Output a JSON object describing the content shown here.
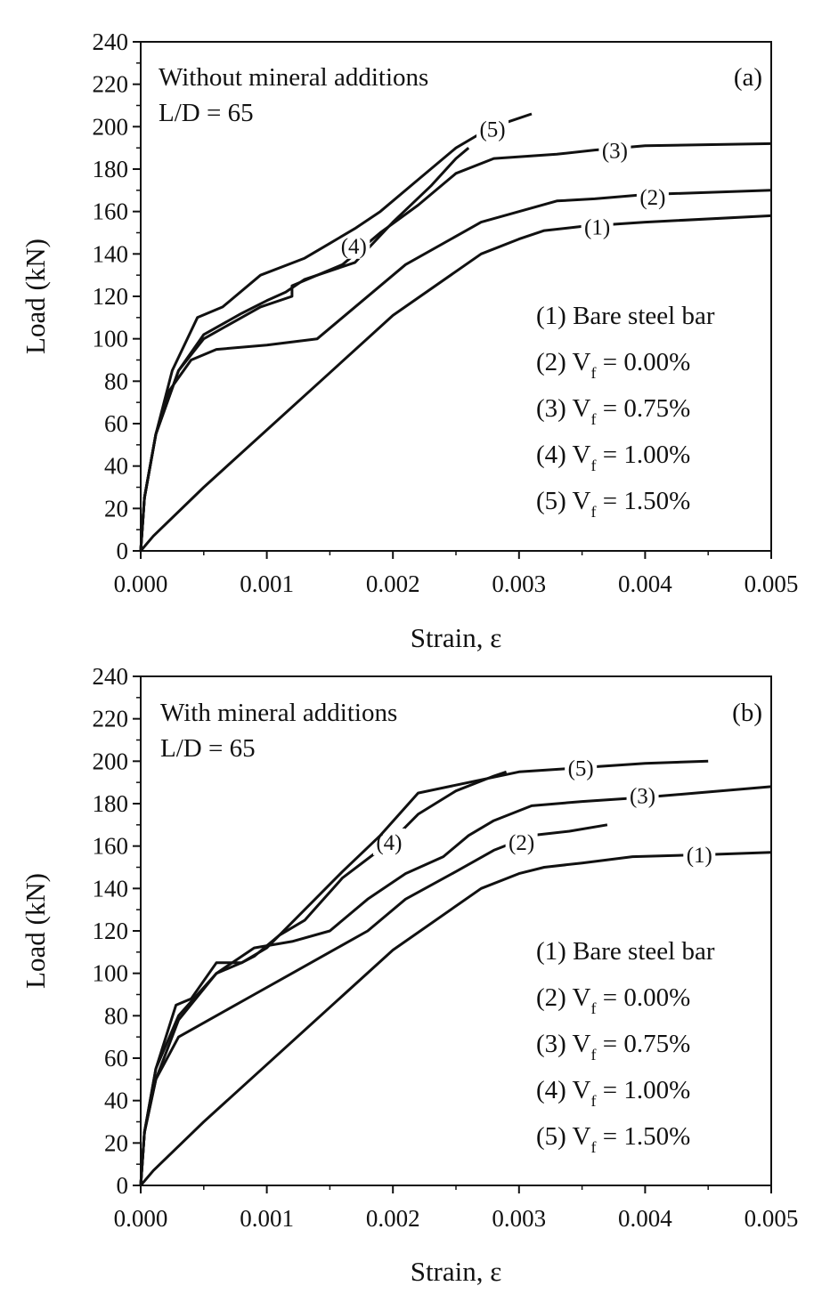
{
  "chart_data": [
    {
      "id": "a",
      "type": "line",
      "panel_label": "(a)",
      "annotation_lines": [
        "Without mineral additions",
        "L/D = 65"
      ],
      "xlabel": "Strain, ε",
      "ylabel": "Load (kN)",
      "xlim": [
        0,
        0.005
      ],
      "ylim": [
        0,
        240
      ],
      "x_ticks": [
        "0.000",
        "0.001",
        "0.002",
        "0.003",
        "0.004",
        "0.005"
      ],
      "y_ticks": [
        "0",
        "20",
        "40",
        "60",
        "80",
        "100",
        "120",
        "140",
        "160",
        "180",
        "200",
        "220",
        "240"
      ],
      "legend": {
        "position": "right-middle",
        "entries": [
          {
            "prefix": "(1) Bare steel bar",
            "sub": "",
            "suffix": ""
          },
          {
            "prefix": "(2) V",
            "sub": "f",
            "suffix": " = 0.00%"
          },
          {
            "prefix": "(3) V",
            "sub": "f",
            "suffix": " = 0.75%"
          },
          {
            "prefix": "(4) V",
            "sub": "f",
            "suffix": " = 1.00%"
          },
          {
            "prefix": "(5) V",
            "sub": "f",
            "suffix": " = 1.50%"
          }
        ]
      },
      "series": [
        {
          "name": "(1)",
          "tag": "(1)",
          "tag_at": [
            0.00362,
            153
          ],
          "points": [
            [
              0,
              0
            ],
            [
              0.0001,
              7
            ],
            [
              0.0005,
              30
            ],
            [
              0.001,
              57
            ],
            [
              0.0015,
              84
            ],
            [
              0.002,
              111
            ],
            [
              0.0027,
              140
            ],
            [
              0.003,
              147
            ],
            [
              0.0032,
              151
            ],
            [
              0.0035,
              153
            ],
            [
              0.004,
              155
            ],
            [
              0.005,
              158
            ]
          ]
        },
        {
          "name": "(2)",
          "tag": "(2)",
          "tag_at": [
            0.00406,
            167
          ],
          "points": [
            [
              0,
              0
            ],
            [
              3e-05,
              25
            ],
            [
              0.00012,
              55
            ],
            [
              0.00022,
              75
            ],
            [
              0.0004,
              90
            ],
            [
              0.0006,
              95
            ],
            [
              0.001,
              97
            ],
            [
              0.0014,
              100
            ],
            [
              0.0016,
              110
            ],
            [
              0.0021,
              135
            ],
            [
              0.0027,
              155
            ],
            [
              0.003,
              160
            ],
            [
              0.0033,
              165
            ],
            [
              0.0036,
              166
            ],
            [
              0.004,
              168
            ],
            [
              0.005,
              170
            ]
          ]
        },
        {
          "name": "(3)",
          "tag": "(3)",
          "tag_at": [
            0.00376,
            189
          ],
          "points": [
            [
              0,
              0
            ],
            [
              3e-05,
              25
            ],
            [
              0.00012,
              55
            ],
            [
              0.0003,
              85
            ],
            [
              0.0005,
              100
            ],
            [
              0.0008,
              110
            ],
            [
              0.00095,
              115
            ],
            [
              0.0012,
              120
            ],
            [
              0.0012,
              125
            ],
            [
              0.0016,
              135
            ],
            [
              0.0019,
              150
            ],
            [
              0.0022,
              163
            ],
            [
              0.0025,
              178
            ],
            [
              0.0028,
              185
            ],
            [
              0.0033,
              187
            ],
            [
              0.0036,
              189
            ],
            [
              0.004,
              191
            ],
            [
              0.005,
              192
            ]
          ]
        },
        {
          "name": "(4)",
          "tag": "(4)",
          "tag_at": [
            0.00169,
            144
          ],
          "points": [
            [
              0,
              0
            ],
            [
              3e-05,
              25
            ],
            [
              0.00012,
              55
            ],
            [
              0.0003,
              85
            ],
            [
              0.0005,
              102
            ],
            [
              0.0008,
              112
            ],
            [
              0.001,
              118
            ],
            [
              0.00115,
              122
            ],
            [
              0.0013,
              128
            ],
            [
              0.0015,
              132
            ],
            [
              0.0017,
              136
            ],
            [
              0.002,
              155
            ],
            [
              0.0023,
              172
            ],
            [
              0.0025,
              185
            ],
            [
              0.0026,
              190
            ]
          ]
        },
        {
          "name": "(5)",
          "tag": "(5)",
          "tag_at": [
            0.00279,
            199
          ],
          "points": [
            [
              0,
              0
            ],
            [
              3e-05,
              25
            ],
            [
              0.00012,
              55
            ],
            [
              0.00025,
              85
            ],
            [
              0.00045,
              110
            ],
            [
              0.00065,
              115
            ],
            [
              0.00095,
              130
            ],
            [
              0.0013,
              138
            ],
            [
              0.0015,
              145
            ],
            [
              0.0017,
              152
            ],
            [
              0.0019,
              160
            ],
            [
              0.0022,
              175
            ],
            [
              0.0025,
              190
            ],
            [
              0.0027,
              197
            ],
            [
              0.0028,
              200
            ],
            [
              0.0029,
              202
            ],
            [
              0.0031,
              206
            ]
          ]
        }
      ]
    },
    {
      "id": "b",
      "type": "line",
      "panel_label": "(b)",
      "annotation_lines": [
        "With mineral additions",
        "L/D = 65"
      ],
      "xlabel": "Strain, ε",
      "ylabel": "Load (kN)",
      "xlim": [
        0,
        0.005
      ],
      "ylim": [
        0,
        240
      ],
      "x_ticks": [
        "0.000",
        "0.001",
        "0.002",
        "0.003",
        "0.004",
        "0.005"
      ],
      "y_ticks": [
        "0",
        "20",
        "40",
        "60",
        "80",
        "100",
        "120",
        "140",
        "160",
        "180",
        "200",
        "220",
        "240"
      ],
      "legend": {
        "position": "right-bottom",
        "entries": [
          {
            "prefix": "(1) Bare steel bar",
            "sub": "",
            "suffix": ""
          },
          {
            "prefix": "(2) V",
            "sub": "f",
            "suffix": " = 0.00%"
          },
          {
            "prefix": "(3) V",
            "sub": "f",
            "suffix": " = 0.75%"
          },
          {
            "prefix": "(4) V",
            "sub": "f",
            "suffix": " = 1.00%"
          },
          {
            "prefix": "(5) V",
            "sub": "f",
            "suffix": " = 1.50%"
          }
        ]
      },
      "series": [
        {
          "name": "(1)",
          "tag": "(1)",
          "tag_at": [
            0.00443,
            156
          ],
          "points": [
            [
              0,
              0
            ],
            [
              0.0001,
              7
            ],
            [
              0.0005,
              30
            ],
            [
              0.001,
              57
            ],
            [
              0.0015,
              84
            ],
            [
              0.002,
              111
            ],
            [
              0.0027,
              140
            ],
            [
              0.003,
              147
            ],
            [
              0.0032,
              150
            ],
            [
              0.0035,
              152
            ],
            [
              0.0039,
              155
            ],
            [
              0.0045,
              156
            ],
            [
              0.005,
              157
            ]
          ]
        },
        {
          "name": "(2)",
          "tag": "(2)",
          "tag_at": [
            0.00302,
            162
          ],
          "points": [
            [
              0,
              0
            ],
            [
              3e-05,
              25
            ],
            [
              0.00012,
              50
            ],
            [
              0.0003,
              70
            ],
            [
              0.0006,
              80
            ],
            [
              0.0009,
              90
            ],
            [
              0.0012,
              100
            ],
            [
              0.0015,
              110
            ],
            [
              0.0018,
              120
            ],
            [
              0.0021,
              135
            ],
            [
              0.0025,
              148
            ],
            [
              0.0028,
              158
            ],
            [
              0.0031,
              165
            ],
            [
              0.0034,
              167
            ],
            [
              0.0037,
              170
            ]
          ]
        },
        {
          "name": "(3)",
          "tag": "(3)",
          "tag_at": [
            0.00398,
            184
          ],
          "points": [
            [
              0,
              0
            ],
            [
              3e-05,
              25
            ],
            [
              0.00012,
              50
            ],
            [
              0.0003,
              78
            ],
            [
              0.0006,
              100
            ],
            [
              0.0009,
              112
            ],
            [
              0.0012,
              115
            ],
            [
              0.0015,
              120
            ],
            [
              0.0018,
              135
            ],
            [
              0.0021,
              147
            ],
            [
              0.0024,
              155
            ],
            [
              0.0026,
              165
            ],
            [
              0.0028,
              172
            ],
            [
              0.0031,
              179
            ],
            [
              0.0035,
              181
            ],
            [
              0.004,
              183
            ],
            [
              0.005,
              188
            ]
          ]
        },
        {
          "name": "(4)",
          "tag": "(4)",
          "tag_at": [
            0.00197,
            162
          ],
          "points": [
            [
              0,
              0
            ],
            [
              3e-05,
              25
            ],
            [
              0.00012,
              55
            ],
            [
              0.0003,
              80
            ],
            [
              0.0006,
              100
            ],
            [
              0.0008,
              105
            ],
            [
              0.0009,
              108
            ],
            [
              0.0011,
              118
            ],
            [
              0.0013,
              125
            ],
            [
              0.0016,
              145
            ],
            [
              0.002,
              163
            ],
            [
              0.0022,
              175
            ],
            [
              0.0025,
              186
            ],
            [
              0.0028,
              193
            ],
            [
              0.0029,
              195
            ]
          ]
        },
        {
          "name": "(5)",
          "tag": "(5)",
          "tag_at": [
            0.00349,
            197
          ],
          "points": [
            [
              0,
              0
            ],
            [
              3e-05,
              25
            ],
            [
              0.00012,
              55
            ],
            [
              0.00028,
              85
            ],
            [
              0.0004,
              88
            ],
            [
              0.0006,
              105
            ],
            [
              0.0008,
              105
            ],
            [
              0.001,
              112
            ],
            [
              0.0013,
              130
            ],
            [
              0.0016,
              148
            ],
            [
              0.0019,
              165
            ],
            [
              0.0022,
              185
            ],
            [
              0.0026,
              190
            ],
            [
              0.003,
              195
            ],
            [
              0.0035,
              197
            ],
            [
              0.004,
              199
            ],
            [
              0.0045,
              200
            ]
          ]
        }
      ]
    }
  ]
}
